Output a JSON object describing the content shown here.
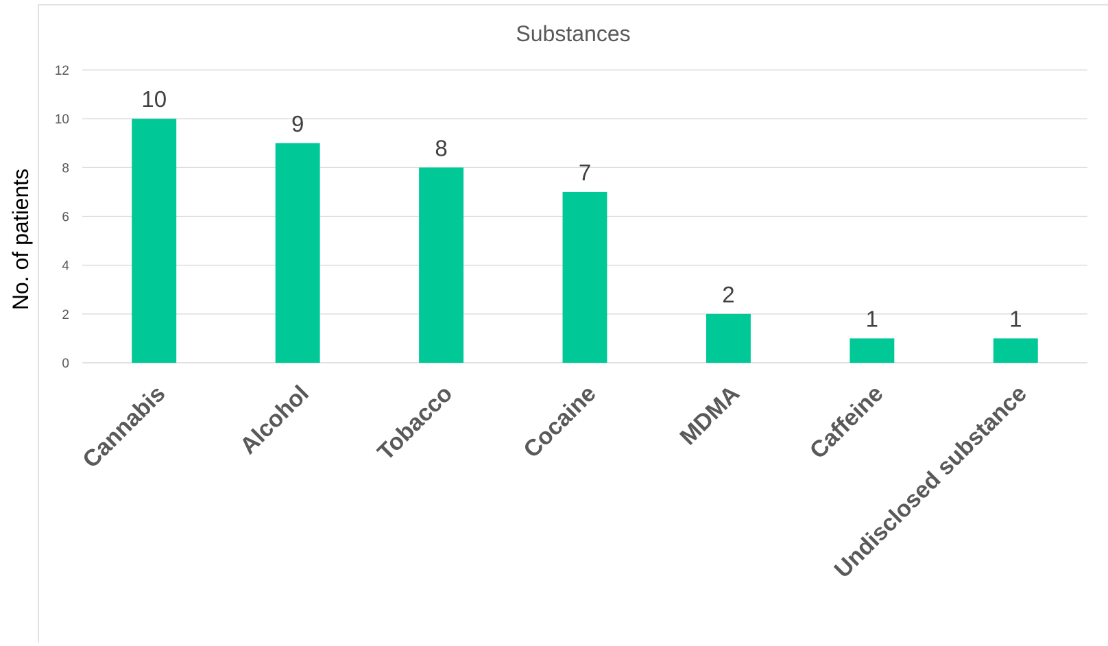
{
  "chart_data": {
    "type": "bar",
    "title": "Substances",
    "xlabel": "",
    "ylabel": "No. of patients",
    "categories": [
      "Cannabis",
      "Alcohol",
      "Tobacco",
      "Cocaine",
      "MDMA",
      "Caffeine",
      "Undisclosed substance"
    ],
    "values": [
      10,
      9,
      8,
      7,
      2,
      1,
      1
    ],
    "ylim": [
      0,
      12
    ],
    "yticks": [
      "0",
      "2",
      "4",
      "6",
      "8",
      "10",
      "12"
    ],
    "grid": true,
    "legend": "none",
    "bar_color": "#00c896",
    "data_labels": [
      "10",
      "9",
      "8",
      "7",
      "2",
      "1",
      "1"
    ]
  }
}
